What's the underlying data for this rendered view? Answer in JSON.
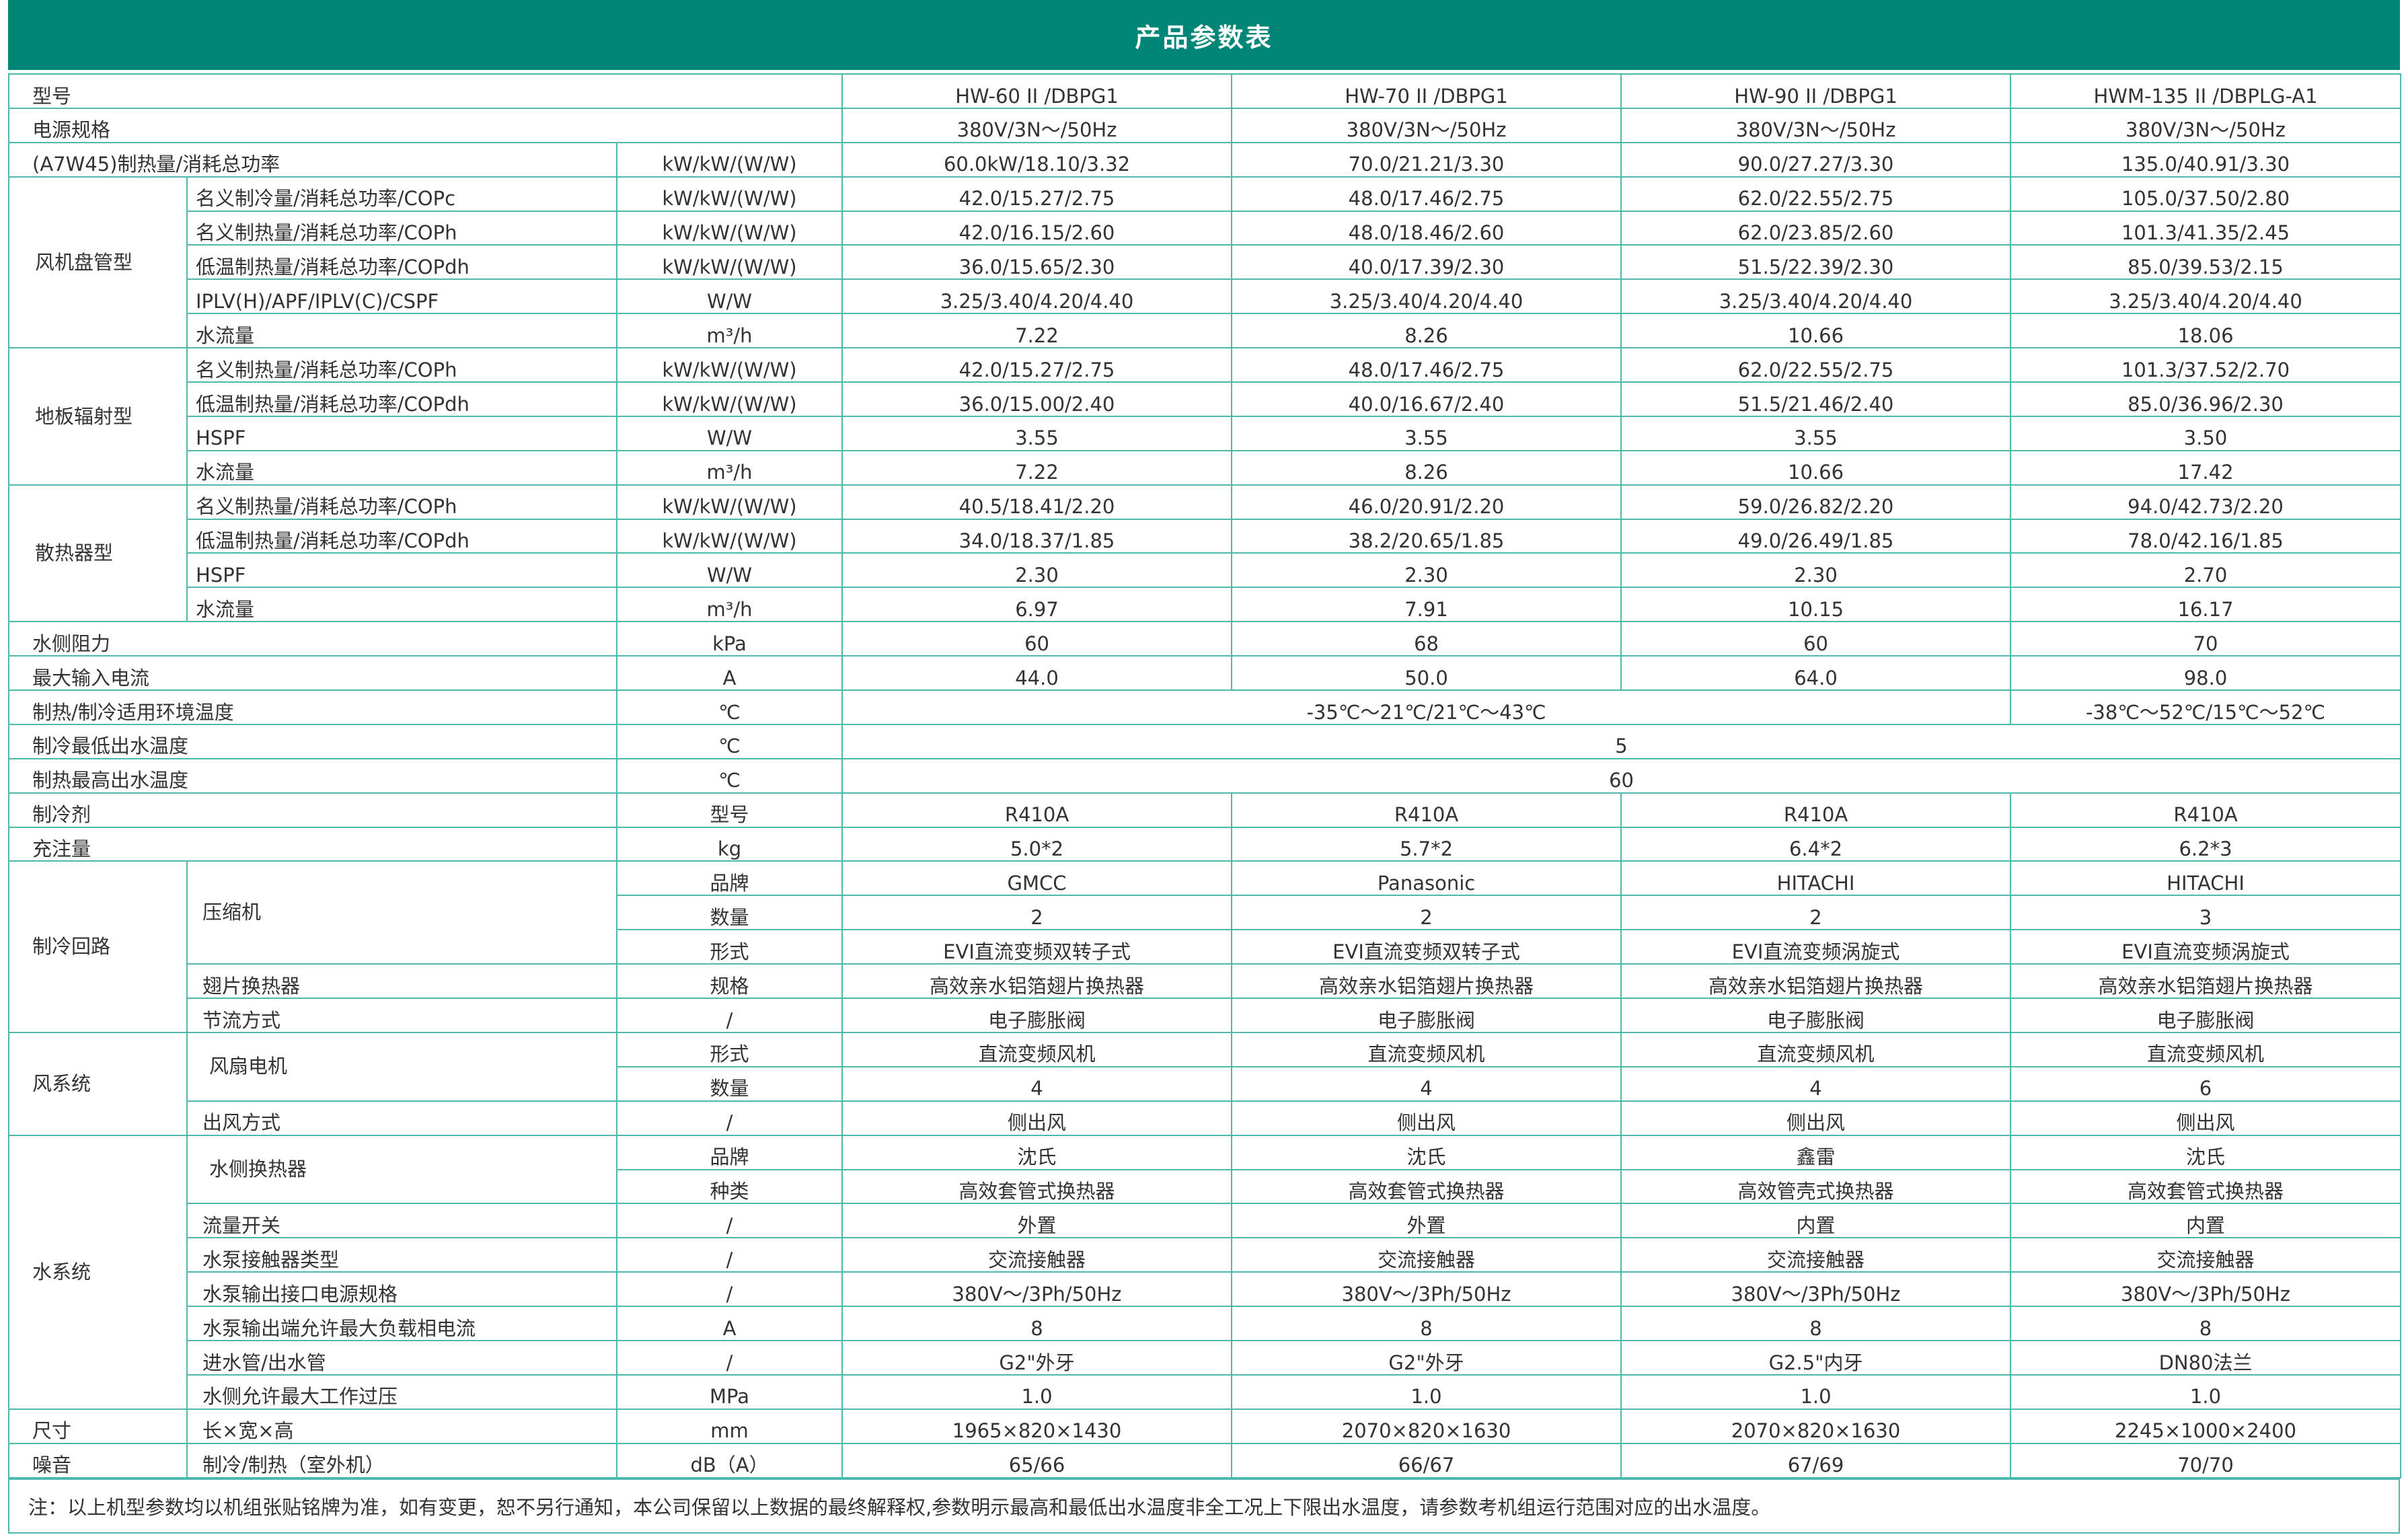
{
  "title": "产品参数表",
  "models": [
    "HW-60 II /DBPG1",
    "HW-70 II /DBPG1",
    "HW-90 II /DBPG1",
    "HWM-135 II /DBPLG-A1"
  ],
  "power_spec": {
    "label": "电源规格",
    "values": [
      "380V/3N～/50Hz",
      "380V/3N～/50Hz",
      "380V/3N～/50Hz",
      "380V/3N～/50Hz"
    ]
  },
  "a7w45": {
    "label": "(A7W45)制热量/消耗总功率",
    "unit": "kW/kW/(W/W)",
    "values": [
      "60.0kW/18.10/3.32",
      "70.0/21.21/3.30",
      "90.0/27.27/3.30",
      "135.0/40.91/3.30"
    ]
  },
  "groups": [
    {
      "label": "风机盘管型",
      "rows": [
        {
          "label": "名义制冷量/消耗总功率/COPc",
          "unit": "kW/kW/(W/W)",
          "values": [
            "42.0/15.27/2.75",
            "48.0/17.46/2.75",
            "62.0/22.55/2.75",
            "105.0/37.50/2.80"
          ]
        },
        {
          "label": "名义制热量/消耗总功率/COPh",
          "unit": "kW/kW/(W/W)",
          "values": [
            "42.0/16.15/2.60",
            "48.0/18.46/2.60",
            "62.0/23.85/2.60",
            "101.3/41.35/2.45"
          ]
        },
        {
          "label": "低温制热量/消耗总功率/COPdh",
          "unit": "kW/kW/(W/W)",
          "values": [
            "36.0/15.65/2.30",
            "40.0/17.39/2.30",
            "51.5/22.39/2.30",
            "85.0/39.53/2.15"
          ]
        },
        {
          "label": "IPLV(H)/APF/IPLV(C)/CSPF",
          "unit": "W/W",
          "values": [
            "3.25/3.40/4.20/4.40",
            "3.25/3.40/4.20/4.40",
            "3.25/3.40/4.20/4.40",
            "3.25/3.40/4.20/4.40"
          ]
        },
        {
          "label": "水流量",
          "unit": "m³/h",
          "values": [
            "7.22",
            "8.26",
            "10.66",
            "18.06"
          ]
        }
      ]
    },
    {
      "label": "地板辐射型",
      "rows": [
        {
          "label": "名义制热量/消耗总功率/COPh",
          "unit": "kW/kW/(W/W)",
          "values": [
            "42.0/15.27/2.75",
            "48.0/17.46/2.75",
            "62.0/22.55/2.75",
            "101.3/37.52/2.70"
          ]
        },
        {
          "label": "低温制热量/消耗总功率/COPdh",
          "unit": "kW/kW/(W/W)",
          "values": [
            "36.0/15.00/2.40",
            "40.0/16.67/2.40",
            "51.5/21.46/2.40",
            "85.0/36.96/2.30"
          ]
        },
        {
          "label": "HSPF",
          "unit": "W/W",
          "values": [
            "3.55",
            "3.55",
            "3.55",
            "3.50"
          ]
        },
        {
          "label": "水流量",
          "unit": "m³/h",
          "values": [
            "7.22",
            "8.26",
            "10.66",
            "17.42"
          ]
        }
      ]
    },
    {
      "label": "散热器型",
      "rows": [
        {
          "label": "名义制热量/消耗总功率/COPh",
          "unit": "kW/kW/(W/W)",
          "values": [
            "40.5/18.41/2.20",
            "46.0/20.91/2.20",
            "59.0/26.82/2.20",
            "94.0/42.73/2.20"
          ]
        },
        {
          "label": "低温制热量/消耗总功率/COPdh",
          "unit": "kW/kW/(W/W)",
          "values": [
            "34.0/18.37/1.85",
            "38.2/20.65/1.85",
            "49.0/26.49/1.85",
            "78.0/42.16/1.85"
          ]
        },
        {
          "label": "HSPF",
          "unit": "W/W",
          "values": [
            "2.30",
            "2.30",
            "2.30",
            "2.70"
          ]
        },
        {
          "label": "水流量",
          "unit": "m³/h",
          "values": [
            "6.97",
            "7.91",
            "10.15",
            "16.17"
          ]
        }
      ]
    }
  ],
  "water_resistance": {
    "label": "水侧阻力",
    "unit": "kPa",
    "values": [
      "60",
      "68",
      "60",
      "70"
    ]
  },
  "max_current": {
    "label": "最大输入电流",
    "unit": "A",
    "values": [
      "44.0",
      "50.0",
      "64.0",
      "98.0"
    ]
  },
  "ambient_temp": {
    "label": "制热/制冷适用环境温度",
    "unit": "℃",
    "value_a": "-35℃～21℃/21℃～43℃",
    "value_b": "-38℃～52℃/15℃～52℃"
  },
  "min_cool_out": {
    "label": "制冷最低出水温度",
    "unit": "℃",
    "value": "5"
  },
  "max_heat_out": {
    "label": "制热最高出水温度",
    "unit": "℃",
    "value": "60"
  },
  "refrigerant": {
    "label": "制冷剂",
    "unit": "型号",
    "values": [
      "R410A",
      "R410A",
      "R410A",
      "R410A"
    ]
  },
  "charge": {
    "label": "充注量",
    "unit": "kg",
    "values": [
      "5.0*2",
      "5.7*2",
      "6.4*2",
      "6.2*3"
    ]
  },
  "circuit": {
    "label": "制冷回路",
    "compressor": "压缩机",
    "brand": {
      "unit": "品牌",
      "values": [
        "GMCC",
        "Panasonic",
        "HITACHI",
        "HITACHI"
      ]
    },
    "qty": {
      "unit": "数量",
      "values": [
        "2",
        "2",
        "2",
        "3"
      ]
    },
    "form": {
      "unit": "形式",
      "values": [
        "EVI直流变频双转子式",
        "EVI直流变频双转子式",
        "EVI直流变频涡旋式",
        "EVI直流变频涡旋式"
      ]
    },
    "fin": {
      "label": "翅片换热器",
      "unit": "规格",
      "values": [
        "高效亲水铝箔翅片换热器",
        "高效亲水铝箔翅片换热器",
        "高效亲水铝箔翅片换热器",
        "高效亲水铝箔翅片换热器"
      ]
    },
    "throttle": {
      "label": "节流方式",
      "unit": "/",
      "values": [
        "电子膨胀阀",
        "电子膨胀阀",
        "电子膨胀阀",
        "电子膨胀阀"
      ]
    }
  },
  "wind": {
    "label": "风系统",
    "motor": "风扇电机",
    "form": {
      "unit": "形式",
      "values": [
        "直流变频风机",
        "直流变频风机",
        "直流变频风机",
        "直流变频风机"
      ]
    },
    "qty": {
      "unit": "数量",
      "values": [
        "4",
        "4",
        "4",
        "6"
      ]
    },
    "outlet": {
      "label": "出风方式",
      "unit": "/",
      "values": [
        "侧出风",
        "侧出风",
        "侧出风",
        "侧出风"
      ]
    }
  },
  "water": {
    "label": "水系统",
    "hx": "水侧换热器",
    "brand": {
      "unit": "品牌",
      "values": [
        "沈氏",
        "沈氏",
        "鑫雷",
        "沈氏"
      ]
    },
    "kind": {
      "unit": "种类",
      "values": [
        "高效套管式换热器",
        "高效套管式换热器",
        "高效管壳式换热器",
        "高效套管式换热器"
      ]
    },
    "rows": [
      {
        "label": "流量开关",
        "unit": "/",
        "values": [
          "外置",
          "外置",
          "内置",
          "内置"
        ]
      },
      {
        "label": "水泵接触器类型",
        "unit": "/",
        "values": [
          "交流接触器",
          "交流接触器",
          "交流接触器",
          "交流接触器"
        ]
      },
      {
        "label": "水泵输出接口电源规格",
        "unit": "/",
        "values": [
          "380V～/3Ph/50Hz",
          "380V～/3Ph/50Hz",
          "380V～/3Ph/50Hz",
          "380V～/3Ph/50Hz"
        ]
      },
      {
        "label": "水泵输出端允许最大负载相电流",
        "unit": "A",
        "values": [
          "8",
          "8",
          "8",
          "8"
        ]
      },
      {
        "label": "进水管/出水管",
        "unit": "/",
        "values": [
          "G2\"外牙",
          "G2\"外牙",
          "G2.5\"内牙",
          "DN80法兰"
        ]
      },
      {
        "label": "水侧允许最大工作过压",
        "unit": "MPa",
        "values": [
          "1.0",
          "1.0",
          "1.0",
          "1.0"
        ]
      }
    ]
  },
  "size": {
    "label": "尺寸",
    "sub": "长×宽×高",
    "unit": "mm",
    "values": [
      "1965×820×1430",
      "2070×820×1630",
      "2070×820×1630",
      "2245×1000×2400"
    ]
  },
  "noise": {
    "label": "噪音",
    "sub": "制冷/制热（室外机）",
    "unit": "dB（A）",
    "values": [
      "65/66",
      "66/67",
      "67/69",
      "70/70"
    ]
  },
  "model_label": "型号",
  "note": "注：以上机型参数均以机组张贴铭牌为准，如有变更，恕不另行通知，本公司保留以上数据的最终解释权,参数明示最高和最低出水温度非全工况上下限出水温度，请参数考机组运行范围对应的出水温度。"
}
